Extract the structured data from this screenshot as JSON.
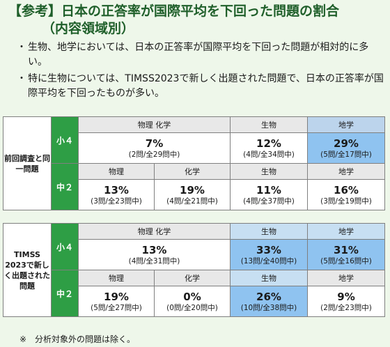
{
  "title": {
    "line1": "【参考】日本の正答率が国際平均を下回った問題の割合",
    "line2": "（内容領域別）"
  },
  "bullets": [
    "生物、地学においては、日本の正答率が国際平均を下回った問題が相対的に多い。",
    "特に生物については、TIMSS2023で新しく出題された問題で、日本の正答率が国際平均を下回ったものが多い。"
  ],
  "table1": {
    "row_label": "前回調査と同一問題",
    "e4": {
      "level": "小４",
      "headers": [
        "物理 化学",
        "生物",
        "地学"
      ],
      "cells": [
        {
          "pct": "7%",
          "count": "(2問/全29問中)"
        },
        {
          "pct": "12%",
          "count": "(4問/全34問中)"
        },
        {
          "pct": "29%",
          "count": "(5問/全17問中)"
        }
      ]
    },
    "m2": {
      "level": "中２",
      "headers": [
        "物理",
        "化学",
        "生物",
        "地学"
      ],
      "cells": [
        {
          "pct": "13%",
          "count": "(3問/全23問中)"
        },
        {
          "pct": "19%",
          "count": "(4問/全21問中)"
        },
        {
          "pct": "11%",
          "count": "(4問/全37問中)"
        },
        {
          "pct": "16%",
          "count": "(3問/全19問中)"
        }
      ]
    }
  },
  "table2": {
    "row_label": "TIMSS 2023で新しく出題された問題",
    "e4": {
      "level": "小４",
      "headers": [
        "物理 化学",
        "生物",
        "地学"
      ],
      "cells": [
        {
          "pct": "13%",
          "count": "(4問/全31問中)"
        },
        {
          "pct": "33%",
          "count": "(13問/全40問中)"
        },
        {
          "pct": "31%",
          "count": "(5問/全16問中)"
        }
      ]
    },
    "m2": {
      "level": "中２",
      "headers": [
        "物理",
        "化学",
        "生物",
        "地学"
      ],
      "cells": [
        {
          "pct": "19%",
          "count": "(5問/全27問中)"
        },
        {
          "pct": "0%",
          "count": "(0問/全20問中)"
        },
        {
          "pct": "26%",
          "count": "(10問/全38問中)"
        },
        {
          "pct": "9%",
          "count": "(2問/全23問中)"
        }
      ]
    }
  },
  "note": "※　分析対象外の問題は除く。",
  "colors": {
    "title": "#1f5f2a",
    "level_bg": "#2e9e45",
    "highlight": "#8fc3f0",
    "header_bg": "#e8e8e8",
    "header_blue": "#bcd4ec"
  }
}
